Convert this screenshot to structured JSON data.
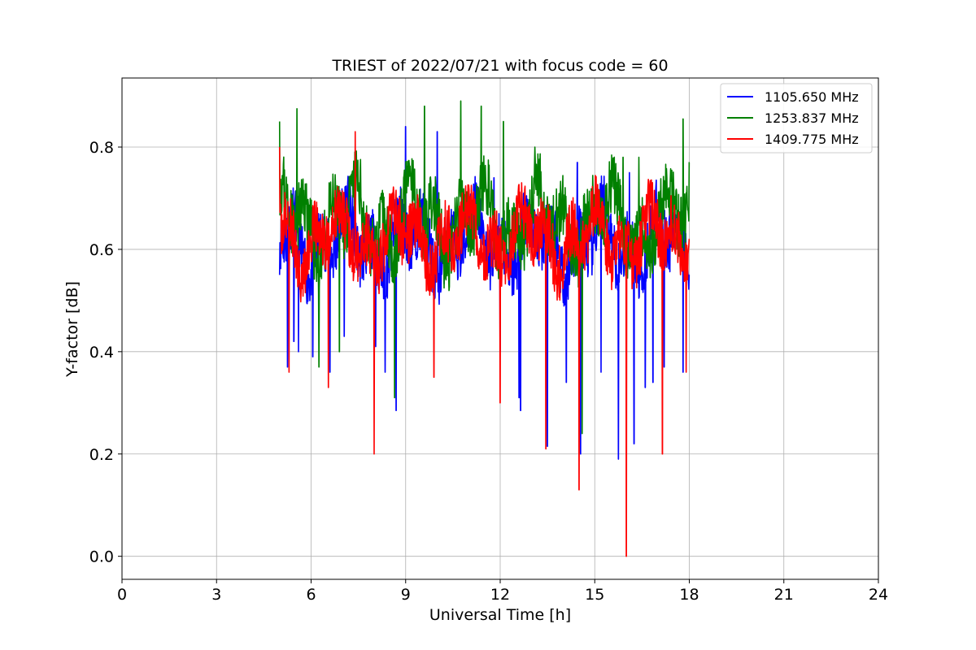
{
  "chart_data": {
    "type": "line",
    "title": "TRIEST of 2022/07/21 with focus code = 60",
    "xlabel": "Universal Time [h]",
    "ylabel": "Y-factor [dB]",
    "xlim": [
      0,
      24
    ],
    "ylim": [
      -0.045,
      0.935
    ],
    "xticks": [
      0,
      3,
      6,
      9,
      12,
      15,
      18,
      21,
      24
    ],
    "yticks": [
      0.0,
      0.2,
      0.4,
      0.6,
      0.8
    ],
    "ytick_labels": [
      "0.0",
      "0.2",
      "0.4",
      "0.6",
      "0.8"
    ],
    "grid": true,
    "legend_position": "top-right",
    "x_range_of_data": [
      5.0,
      18.0
    ],
    "series": [
      {
        "name": "1105.650 MHz",
        "color": "#0000ff",
        "points": [
          [
            5.0,
            0.55
          ],
          [
            5.25,
            0.37
          ],
          [
            5.45,
            0.42
          ],
          [
            5.6,
            0.4
          ],
          [
            6.05,
            0.39
          ],
          [
            6.6,
            0.36
          ],
          [
            7.05,
            0.43
          ],
          [
            8.05,
            0.41
          ],
          [
            8.35,
            0.36
          ],
          [
            8.7,
            0.285
          ],
          [
            9.0,
            0.84
          ],
          [
            10.0,
            0.83
          ],
          [
            11.8,
            0.74
          ],
          [
            12.0,
            0.4
          ],
          [
            12.6,
            0.31
          ],
          [
            12.65,
            0.285
          ],
          [
            13.5,
            0.215
          ],
          [
            14.1,
            0.34
          ],
          [
            14.55,
            0.2
          ],
          [
            14.45,
            0.77
          ],
          [
            15.2,
            0.36
          ],
          [
            15.75,
            0.19
          ],
          [
            16.1,
            0.75
          ],
          [
            16.25,
            0.22
          ],
          [
            16.6,
            0.33
          ],
          [
            16.85,
            0.34
          ],
          [
            17.2,
            0.37
          ],
          [
            17.8,
            0.36
          ],
          [
            18.0,
            0.55
          ]
        ]
      },
      {
        "name": "1253.837 MHz",
        "color": "#008000",
        "points": [
          [
            5.0,
            0.85
          ],
          [
            5.55,
            0.875
          ],
          [
            6.25,
            0.37
          ],
          [
            6.9,
            0.4
          ],
          [
            8.65,
            0.31
          ],
          [
            9.6,
            0.88
          ],
          [
            10.75,
            0.89
          ],
          [
            11.4,
            0.88
          ],
          [
            12.1,
            0.85
          ],
          [
            13.1,
            0.8
          ],
          [
            14.6,
            0.24
          ],
          [
            15.9,
            0.78
          ],
          [
            16.4,
            0.78
          ],
          [
            17.8,
            0.855
          ],
          [
            18.0,
            0.77
          ]
        ]
      },
      {
        "name": "1409.775 MHz",
        "color": "#ff0000",
        "points": [
          [
            5.0,
            0.8
          ],
          [
            5.3,
            0.36
          ],
          [
            6.55,
            0.33
          ],
          [
            7.4,
            0.83
          ],
          [
            8.0,
            0.2
          ],
          [
            9.9,
            0.35
          ],
          [
            12.0,
            0.3
          ],
          [
            13.45,
            0.21
          ],
          [
            14.5,
            0.13
          ],
          [
            16.0,
            0.0
          ],
          [
            17.15,
            0.2
          ],
          [
            17.9,
            0.36
          ],
          [
            18.0,
            0.62
          ]
        ]
      }
    ]
  }
}
